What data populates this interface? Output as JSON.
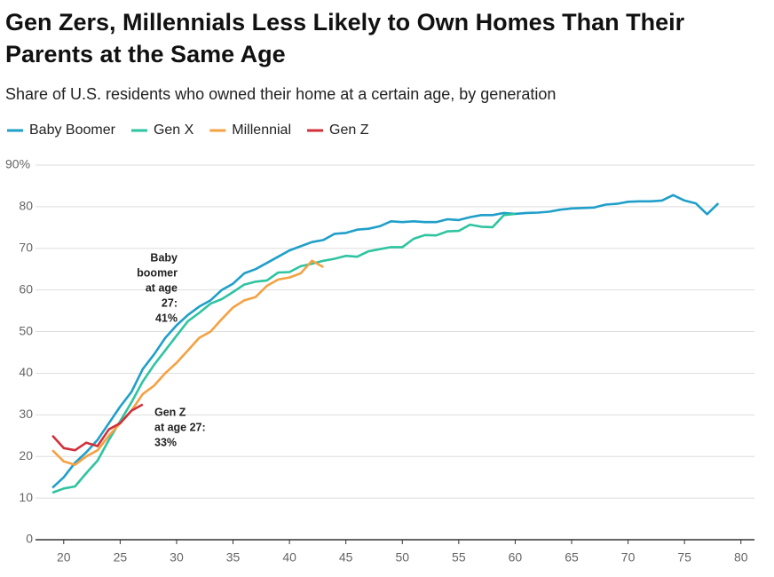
{
  "chart_data": {
    "type": "line",
    "title": [
      "Gen Zers, Millennials Less Likely to Own Homes Than Their",
      "Parents at the Same Age"
    ],
    "subtitle": "Share of U.S. residents who owned their home at a certain age, by generation",
    "x": [
      19,
      20,
      21,
      22,
      23,
      24,
      25,
      26,
      27,
      28,
      29,
      30,
      31,
      32,
      33,
      34,
      35,
      36,
      37,
      38,
      39,
      40,
      41,
      42,
      43,
      44,
      45,
      46,
      47,
      48,
      49,
      50,
      51,
      52,
      53,
      54,
      55,
      56,
      57,
      58,
      59,
      60,
      61,
      62,
      63,
      64,
      65,
      66,
      67,
      68,
      69,
      70,
      71,
      72,
      73,
      74,
      75,
      76,
      77,
      78
    ],
    "series": [
      {
        "name": "Baby Boomer",
        "color": "#1f9fc9",
        "values": [
          12.5,
          15,
          18.5,
          21,
          24,
          28,
          32,
          35.5,
          41,
          44.5,
          48.5,
          51.5,
          54,
          56,
          57.5,
          60,
          61.5,
          64,
          65,
          66.5,
          68,
          69.5,
          70.5,
          71.5,
          72,
          73.5,
          73.7,
          74.5,
          74.7,
          75.3,
          76.5,
          76.3,
          76.5,
          76.3,
          76.3,
          77,
          76.8,
          77.5,
          78,
          78,
          78.5,
          78.3,
          78.5,
          78.6,
          78.8,
          79.3,
          79.6,
          79.7,
          79.8,
          80.5,
          80.7,
          81.2,
          81.3,
          81.3,
          81.5,
          82.8,
          81.5,
          80.8,
          78.2,
          80.8
        ]
      },
      {
        "name": "Gen X",
        "color": "#2ec4a0",
        "values": [
          11.3,
          12.3,
          12.8,
          16,
          19,
          24,
          28.5,
          33,
          38,
          42,
          45.5,
          49,
          52.5,
          54.5,
          56.7,
          57.8,
          59.5,
          61.3,
          62,
          62.3,
          64.2,
          64.3,
          65.7,
          66.3,
          67,
          67.5,
          68.2,
          68,
          69.3,
          69.8,
          70.3,
          70.3,
          72.3,
          73.2,
          73.1,
          74.1,
          74.2,
          75.7,
          75.2,
          75.1,
          78,
          78.3,
          null,
          null,
          null,
          null,
          null,
          null,
          null,
          null,
          null,
          null,
          null,
          null,
          null,
          null,
          null,
          null,
          null,
          null
        ]
      },
      {
        "name": "Millennial",
        "color": "#f5a142",
        "values": [
          21.5,
          18.8,
          18,
          20,
          21.5,
          25,
          28,
          31,
          35,
          37,
          40,
          42.5,
          45.5,
          48.5,
          50,
          53,
          55.8,
          57.5,
          58.3,
          61,
          62.5,
          63,
          64,
          67,
          65.5,
          null,
          null,
          null,
          null,
          null,
          null,
          null,
          null,
          null,
          null,
          null,
          null,
          null,
          null,
          null,
          null,
          null,
          null,
          null,
          null,
          null,
          null,
          null,
          null,
          null,
          null,
          null,
          null,
          null,
          null,
          null,
          null,
          null,
          null,
          null
        ]
      },
      {
        "name": "Gen Z",
        "color": "#d1303a",
        "values": [
          25,
          22,
          21.5,
          23.3,
          22.5,
          26.5,
          28,
          31,
          32.5,
          null,
          null,
          null,
          null,
          null,
          null,
          null,
          null,
          null,
          null,
          null,
          null,
          null,
          null,
          null,
          null,
          null,
          null,
          null,
          null,
          null,
          null,
          null,
          null,
          null,
          null,
          null,
          null,
          null,
          null,
          null,
          null,
          null,
          null,
          null,
          null,
          null,
          null,
          null,
          null,
          null,
          null,
          null,
          null,
          null,
          null,
          null,
          null,
          null,
          null,
          null
        ]
      }
    ],
    "xlim": [
      17.5,
      81.2
    ],
    "xticks": [
      20,
      25,
      30,
      35,
      40,
      45,
      50,
      55,
      60,
      65,
      70,
      75,
      80
    ],
    "ylim": [
      0,
      90
    ],
    "yticks": [
      0,
      10,
      20,
      30,
      40,
      50,
      60,
      70,
      80,
      {
        "value": 90,
        "label": "90%"
      }
    ],
    "grid": true,
    "annotations": [
      {
        "lines": [
          "Baby",
          "boomer",
          "at age",
          "27:",
          "41%"
        ]
      },
      {
        "lines": [
          "Gen Z",
          "at age 27:",
          "33%"
        ]
      }
    ]
  }
}
